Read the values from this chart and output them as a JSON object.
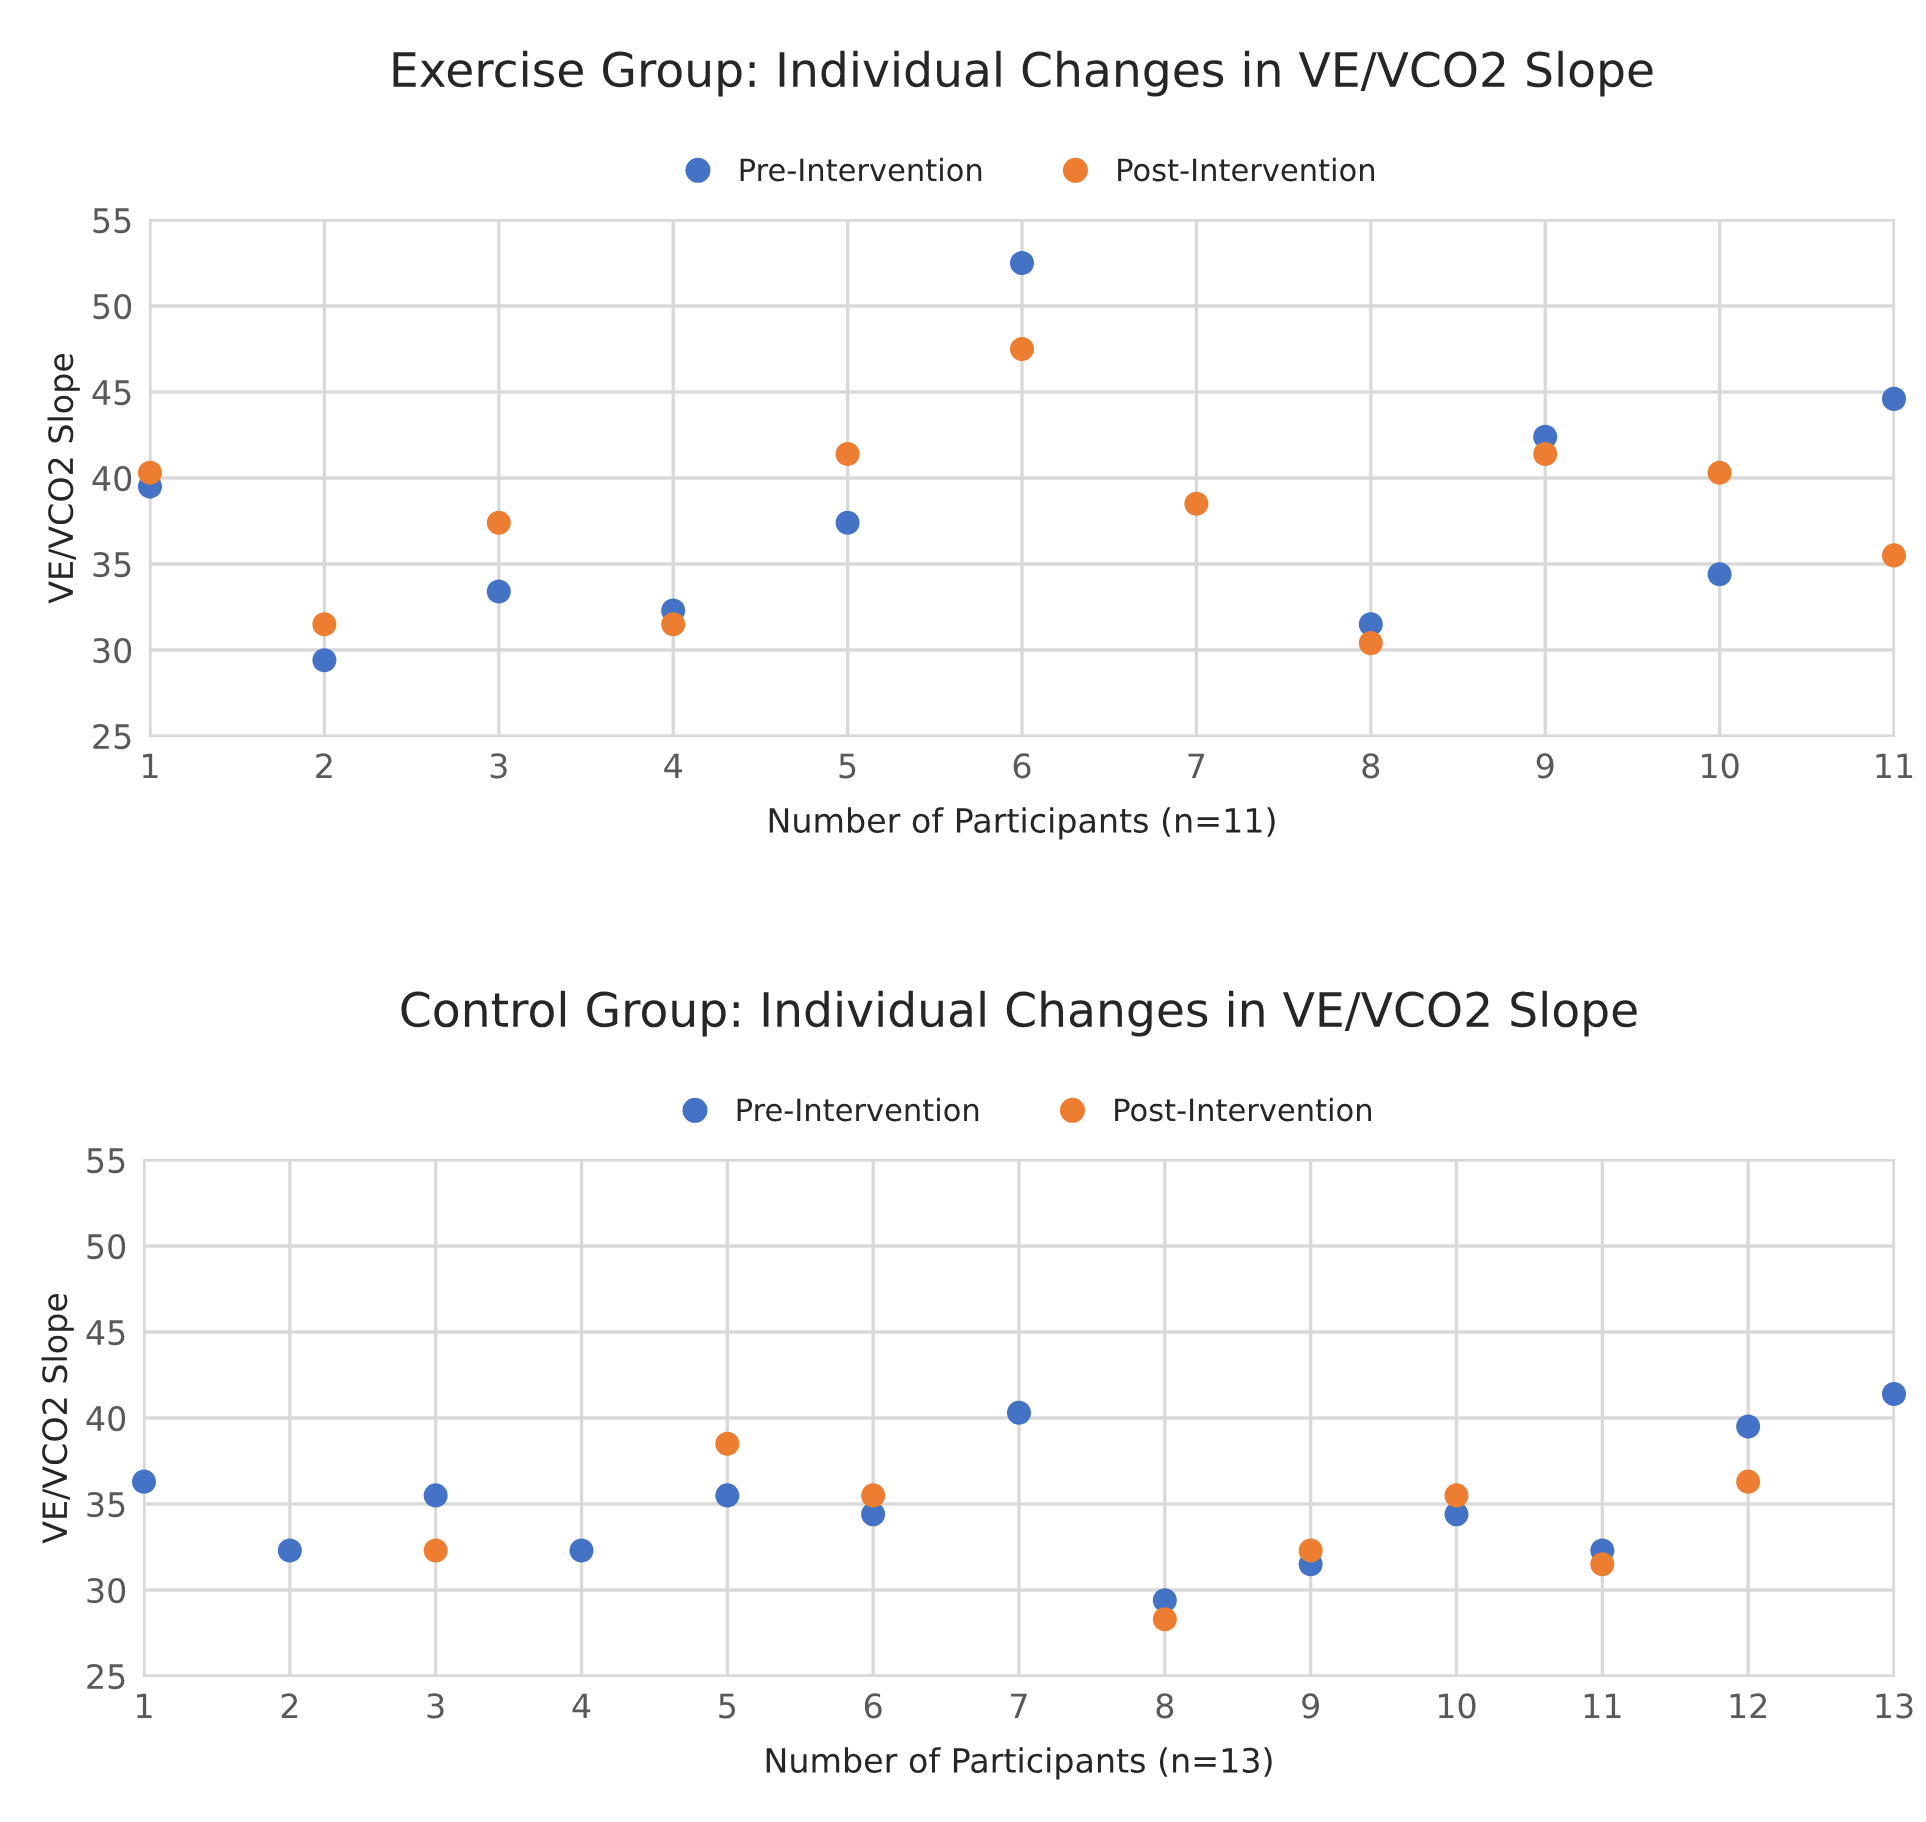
{
  "chart_data": [
    {
      "type": "scatter",
      "title": "Exercise Group: Individual Changes in VE/VCO2 Slope",
      "xlabel": "Number of Participants (n=11)",
      "ylabel": "VE/VCO2 Slope",
      "x": [
        1,
        2,
        3,
        4,
        5,
        6,
        7,
        8,
        9,
        10,
        11
      ],
      "series": [
        {
          "name": "Pre-Intervention",
          "color": "#4472c4",
          "values": [
            39.5,
            29.4,
            33.4,
            32.3,
            37.4,
            52.5,
            null,
            31.5,
            42.4,
            34.4,
            44.6
          ]
        },
        {
          "name": "Post-Intervention",
          "color": "#ed7d31",
          "values": [
            40.3,
            31.5,
            37.4,
            31.5,
            41.4,
            47.5,
            38.5,
            30.4,
            41.4,
            40.3,
            35.5
          ]
        }
      ],
      "xlim": [
        1,
        11
      ],
      "xticks": [
        1,
        2,
        3,
        4,
        5,
        6,
        7,
        8,
        9,
        10,
        11
      ],
      "ylim": [
        25,
        55
      ],
      "yticks": [
        25,
        30,
        35,
        40,
        45,
        50,
        55
      ],
      "grid": true,
      "legend": "top",
      "marker": "circle"
    },
    {
      "type": "scatter",
      "title": "Control Group: Individual Changes in VE/VCO2 Slope",
      "xlabel": "Number of Participants (n=13)",
      "ylabel": "VE/VCO2 Slope",
      "x": [
        1,
        2,
        3,
        4,
        5,
        6,
        7,
        8,
        9,
        10,
        11,
        12,
        13
      ],
      "series": [
        {
          "name": "Pre-Intervention",
          "color": "#4472c4",
          "values": [
            36.3,
            32.3,
            35.5,
            32.3,
            35.5,
            34.4,
            40.3,
            29.4,
            31.5,
            34.4,
            32.3,
            39.5,
            41.4
          ]
        },
        {
          "name": "Post-Intervention",
          "color": "#ed7d31",
          "values": [
            null,
            null,
            32.3,
            null,
            38.5,
            35.5,
            null,
            28.3,
            32.3,
            35.5,
            31.5,
            36.3,
            null
          ]
        }
      ],
      "xlim": [
        1,
        13
      ],
      "xticks": [
        1,
        2,
        3,
        4,
        5,
        6,
        7,
        8,
        9,
        10,
        11,
        12,
        13
      ],
      "ylim": [
        25,
        55
      ],
      "yticks": [
        25,
        30,
        35,
        40,
        45,
        50,
        55
      ],
      "grid": true,
      "legend": "top",
      "marker": "circle"
    }
  ]
}
